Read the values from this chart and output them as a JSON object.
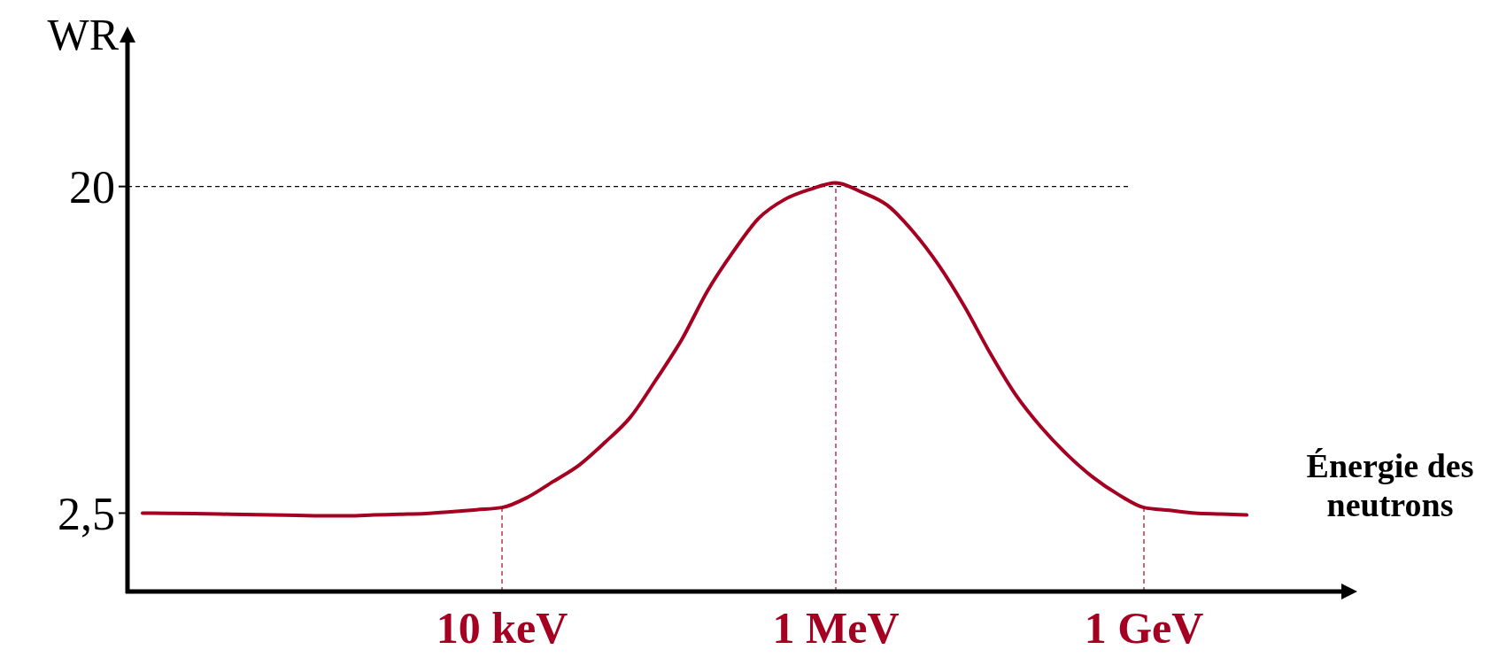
{
  "chart_data": {
    "type": "line",
    "ylabel": "WR",
    "xlabel": "Énergie des neutrons",
    "categories": [
      null,
      null,
      null,
      null,
      null,
      null,
      null,
      null,
      null,
      null,
      null,
      null,
      null,
      null,
      "10 keV",
      null,
      null,
      null,
      null,
      null,
      null,
      null,
      null,
      null,
      null,
      null,
      null,
      "1 MeV",
      null,
      null,
      null,
      null,
      null,
      null,
      null,
      null,
      null,
      null,
      null,
      "1 GeV",
      null,
      null,
      null,
      null
    ],
    "ylim": [
      -1.7,
      28
    ],
    "yticks": [
      {
        "value": 2.5,
        "label": "2,5"
      },
      20
    ],
    "grid": false,
    "marker": "none",
    "line_style": "solid",
    "ref_lines": [
      {
        "axis": "y",
        "value": 20,
        "color": "#000000",
        "line_style": "dashed"
      },
      {
        "axis": "x",
        "value": "10 keV",
        "color": "#a50021",
        "line_style": "dashed"
      },
      {
        "axis": "x",
        "value": "1 MeV",
        "color": "#a50021",
        "line_style": "dashed"
      },
      {
        "axis": "x",
        "value": "1 GeV",
        "color": "#a50021",
        "line_style": "dashed"
      }
    ],
    "series": [
      {
        "color": "#a50021",
        "values": [
          2.5,
          2.49,
          2.47,
          2.45,
          2.43,
          2.4,
          2.38,
          2.36,
          2.36,
          2.4,
          2.44,
          2.48,
          2.57,
          2.68,
          2.8,
          3.35,
          4.2,
          5.07,
          6.28,
          7.64,
          9.65,
          11.8,
          14.4,
          16.5,
          18.3,
          19.3,
          19.85,
          20.2,
          19.7,
          19,
          17.6,
          15.8,
          13.6,
          11.1,
          8.85,
          7.1,
          5.65,
          4.44,
          3.5,
          2.8,
          2.65,
          2.5,
          2.45,
          2.4
        ]
      }
    ]
  }
}
